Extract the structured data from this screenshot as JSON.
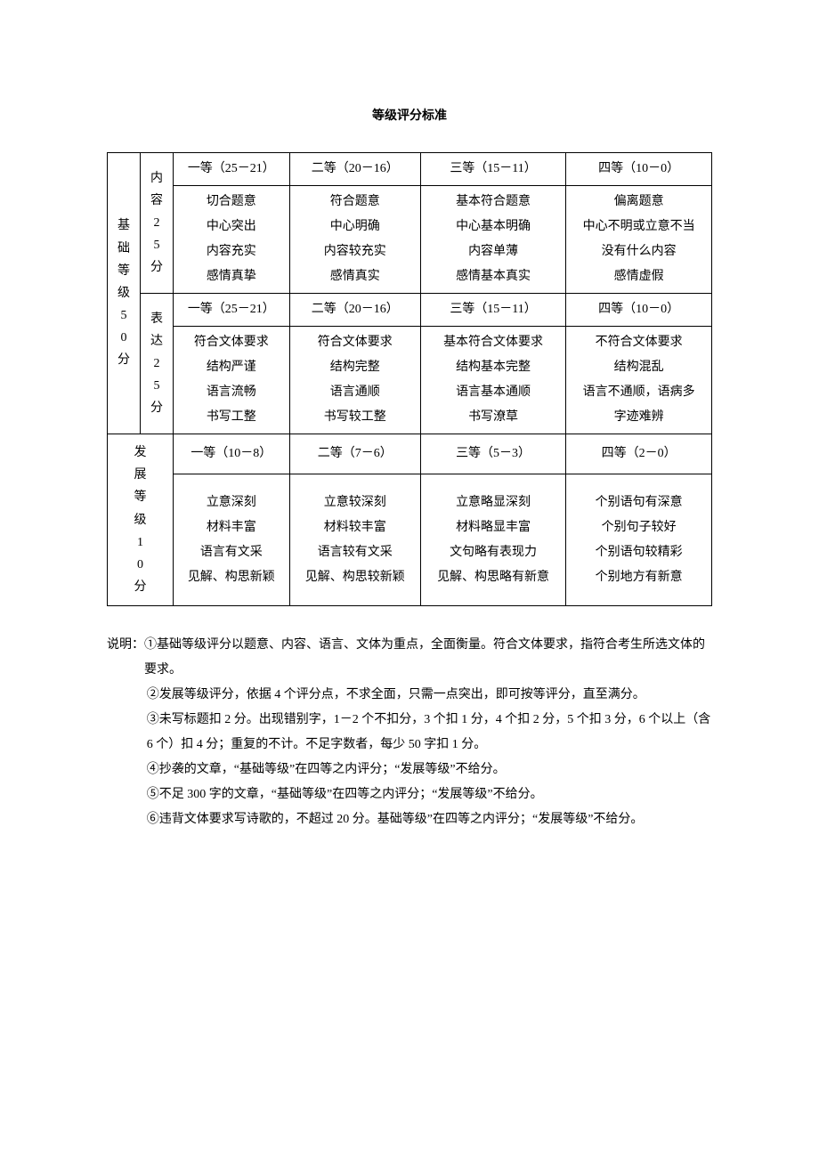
{
  "title": "等级评分标准",
  "rubric": {
    "basic": {
      "label": "基础等级50分",
      "content": {
        "label": "内容25分",
        "header": [
          "一等（25－21）",
          "二等（20－16）",
          "三等（15－11）",
          "四等（10－0）"
        ],
        "rows": [
          [
            "切合题意",
            "符合题意",
            "基本符合题意",
            "偏离题意"
          ],
          [
            "中心突出",
            "中心明确",
            "中心基本明确",
            "中心不明或立意不当"
          ],
          [
            "内容充实",
            "内容较充实",
            "内容单薄",
            "没有什么内容"
          ],
          [
            "感情真挚",
            "感情真实",
            "感情基本真实",
            "感情虚假"
          ]
        ]
      },
      "expression": {
        "label": "表达25分",
        "header": [
          "一等（25－21）",
          "二等（20－16）",
          "三等（15－11）",
          "四等（10－0）"
        ],
        "rows": [
          [
            "符合文体要求",
            "符合文体要求",
            "基本符合文体要求",
            "不符合文体要求"
          ],
          [
            "结构严谨",
            "结构完整",
            "结构基本完整",
            "结构混乱"
          ],
          [
            "语言流畅",
            "语言通顺",
            "语言基本通顺",
            "语言不通顺，语病多"
          ],
          [
            "书写工整",
            "书写较工整",
            "书写潦草",
            "字迹难辨"
          ]
        ]
      }
    },
    "dev": {
      "label": "发展等级10分",
      "header": [
        "一等（10－8）",
        "二等（7－6）",
        "三等（5－3）",
        "四等（2－0）"
      ],
      "cells": [
        "立意深刻\n材料丰富\n语言有文采\n见解、构思新颖",
        "立意较深刻\n材料较丰富\n语言较有文采\n见解、构思较新颖",
        "立意略显深刻\n材料略显丰富\n文句略有表现力\n见解、构思略有新意",
        "个别语句有深意\n个别句子较好\n个别语句较精彩\n个别地方有新意"
      ]
    }
  },
  "notes": {
    "lead": "说明：",
    "items": [
      "①基础等级评分以题意、内容、语言、文体为重点，全面衡量。符合文体要求，指符合考生所选文体的要求。",
      "②发展等级评分，依据 4 个评分点，不求全面，只需一点突出，即可按等评分，直至满分。",
      "③未写标题扣 2 分。出现错别字，1－2 个不扣分，3 个扣 1 分，4 个扣 2 分，5 个扣 3 分，6 个以上（含 6 个）扣 4 分；重复的不计。不足字数者，每少 50 字扣 1 分。",
      "④抄袭的文章，“基础等级”在四等之内评分；“发展等级”不给分。",
      "⑤不足 300 字的文章，“基础等级”在四等之内评分；“发展等级”不给分。",
      "⑥违背文体要求写诗歌的，不超过 20 分。基础等级”在四等之内评分；“发展等级”不给分。"
    ]
  }
}
